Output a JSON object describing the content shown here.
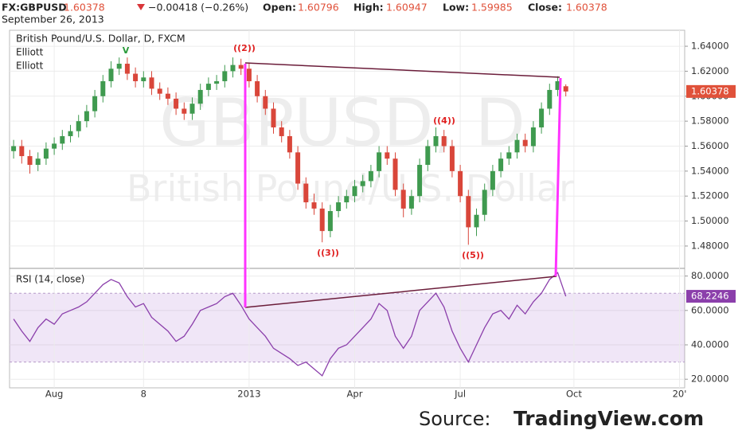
{
  "header": {
    "symbol": "FX:GBPUSD",
    "price": "1.60378",
    "change": "−0.00418 (−0.26%)",
    "open_label": "Open:",
    "open": "1.60796",
    "high_label": "High:",
    "high": "1.60947",
    "low_label": "Low:",
    "low": "1.59985",
    "close_label": "Close:",
    "close": "1.60378",
    "date": "September 26, 2013"
  },
  "source": {
    "label": "Source:",
    "site": "TradingView.com"
  },
  "chart_data": [
    {
      "type": "candlestick",
      "title": "British Pound/U.S. Dollar, D, FXCM",
      "indicators": [
        "Elliott",
        "Elliott"
      ],
      "watermark": [
        "GBPUSD, D",
        "British Pound/U.S. Dollar"
      ],
      "annotations": [
        "V",
        "((2))",
        "((3))",
        "((4))",
        "((5))"
      ],
      "open": [
        1.556,
        1.56,
        1.552,
        1.545,
        1.55,
        1.558,
        1.562,
        1.568,
        1.572,
        1.58,
        1.588,
        1.6,
        1.612,
        1.622,
        1.626,
        1.618,
        1.612,
        1.615,
        1.606,
        1.602,
        1.598,
        1.59,
        1.586,
        1.594,
        1.605,
        1.61,
        1.612,
        1.62,
        1.625,
        1.622,
        1.612,
        1.6,
        1.59,
        1.575,
        1.568,
        1.555,
        1.53,
        1.515,
        1.51,
        1.492,
        1.508,
        1.515,
        1.52,
        1.528,
        1.532,
        1.54,
        1.555,
        1.55,
        1.525,
        1.51,
        1.52,
        1.545,
        1.56,
        1.568,
        1.56,
        1.54,
        1.52,
        1.495,
        1.505,
        1.525,
        1.54,
        1.55,
        1.555,
        1.565,
        1.56,
        1.575,
        1.59,
        1.605,
        1.60796
      ],
      "high": [
        1.565,
        1.565,
        1.557,
        1.555,
        1.563,
        1.567,
        1.573,
        1.577,
        1.585,
        1.593,
        1.605,
        1.617,
        1.628,
        1.631,
        1.631,
        1.623,
        1.62,
        1.62,
        1.611,
        1.607,
        1.603,
        1.595,
        1.599,
        1.61,
        1.615,
        1.617,
        1.625,
        1.631,
        1.63,
        1.627,
        1.617,
        1.605,
        1.595,
        1.58,
        1.573,
        1.56,
        1.535,
        1.522,
        1.515,
        1.513,
        1.52,
        1.525,
        1.533,
        1.537,
        1.545,
        1.56,
        1.56,
        1.555,
        1.53,
        1.525,
        1.55,
        1.565,
        1.575,
        1.573,
        1.565,
        1.545,
        1.525,
        1.51,
        1.53,
        1.545,
        1.555,
        1.56,
        1.57,
        1.57,
        1.58,
        1.595,
        1.61,
        1.616,
        1.60947
      ],
      "low": [
        1.55,
        1.546,
        1.538,
        1.54,
        1.545,
        1.553,
        1.557,
        1.563,
        1.567,
        1.575,
        1.583,
        1.595,
        1.607,
        1.617,
        1.613,
        1.607,
        1.607,
        1.601,
        1.597,
        1.593,
        1.585,
        1.581,
        1.581,
        1.589,
        1.6,
        1.605,
        1.607,
        1.615,
        1.617,
        1.607,
        1.595,
        1.585,
        1.57,
        1.563,
        1.55,
        1.525,
        1.51,
        1.505,
        1.483,
        1.487,
        1.503,
        1.51,
        1.515,
        1.523,
        1.527,
        1.535,
        1.545,
        1.52,
        1.503,
        1.505,
        1.515,
        1.54,
        1.555,
        1.555,
        1.535,
        1.515,
        1.481,
        1.488,
        1.5,
        1.52,
        1.535,
        1.545,
        1.55,
        1.555,
        1.555,
        1.57,
        1.585,
        1.6,
        1.59985
      ],
      "close": [
        1.56,
        1.552,
        1.545,
        1.55,
        1.558,
        1.562,
        1.568,
        1.572,
        1.58,
        1.588,
        1.6,
        1.612,
        1.622,
        1.626,
        1.618,
        1.612,
        1.615,
        1.606,
        1.602,
        1.598,
        1.59,
        1.586,
        1.594,
        1.605,
        1.61,
        1.612,
        1.62,
        1.625,
        1.622,
        1.612,
        1.6,
        1.59,
        1.575,
        1.568,
        1.555,
        1.53,
        1.515,
        1.51,
        1.492,
        1.508,
        1.515,
        1.52,
        1.528,
        1.532,
        1.54,
        1.555,
        1.55,
        1.525,
        1.51,
        1.52,
        1.545,
        1.56,
        1.568,
        1.56,
        1.54,
        1.52,
        1.495,
        1.505,
        1.525,
        1.54,
        1.55,
        1.555,
        1.565,
        1.56,
        1.575,
        1.59,
        1.605,
        1.612,
        1.60378
      ],
      "up_color": "#3f9a4f",
      "down_color": "#d9463a",
      "last_color": "#e0513a",
      "ylim": [
        1.4621,
        1.6528
      ],
      "yticks": [
        {
          "value": 1.48,
          "label": "1.48000"
        },
        {
          "value": 1.5,
          "label": "1.50000"
        },
        {
          "value": 1.52,
          "label": "1.52000"
        },
        {
          "value": 1.54,
          "label": "1.54000"
        },
        {
          "value": 1.56,
          "label": "1.56000"
        },
        {
          "value": 1.58,
          "label": "1.58000"
        },
        {
          "value": 1.6,
          "label": "1.60000"
        },
        {
          "value": 1.62,
          "label": "1.62000"
        },
        {
          "value": 1.64,
          "label": "1.64000"
        }
      ],
      "grid": true
    },
    {
      "type": "line",
      "title": "RSI (14, close)",
      "categories": [
        null,
        null,
        null,
        null,
        null,
        "Aug",
        null,
        null,
        null,
        null,
        null,
        null,
        null,
        null,
        null,
        null,
        "8",
        null,
        null,
        null,
        null,
        null,
        null,
        null,
        null,
        null,
        null,
        null,
        null,
        "2013",
        null,
        null,
        null,
        null,
        null,
        null,
        null,
        null,
        null,
        null,
        null,
        null,
        "Apr",
        null,
        null,
        null,
        null,
        null,
        null,
        null,
        null,
        null,
        null,
        null,
        null,
        "Jul",
        null,
        null,
        null,
        null,
        null,
        null,
        null,
        null,
        null,
        null,
        null,
        null,
        null,
        "Oct",
        null,
        null,
        null,
        null,
        null,
        null,
        null,
        null,
        null,
        null,
        null,
        null,
        "20'"
      ],
      "values": [
        55,
        48,
        42,
        50,
        55,
        52,
        58,
        60,
        62,
        65,
        70,
        75,
        78,
        76,
        68,
        62,
        64,
        56,
        52,
        48,
        42,
        45,
        52,
        60,
        62,
        64,
        68,
        70,
        63,
        55,
        50,
        45,
        38,
        35,
        32,
        28,
        30,
        26,
        22,
        32,
        38,
        40,
        45,
        50,
        55,
        64,
        60,
        45,
        38,
        45,
        60,
        65,
        70,
        62,
        48,
        38,
        30,
        40,
        50,
        58,
        60,
        55,
        63,
        58,
        65,
        70,
        78,
        82,
        68.2246,
        null,
        null,
        null,
        null,
        null,
        null,
        null,
        null,
        null,
        null,
        null,
        null,
        null,
        null
      ],
      "color": "#8b3fab",
      "bands": [
        30,
        70
      ],
      "ylim": [
        15,
        84
      ],
      "yticks": [
        {
          "value": 20,
          "label": "20.0000"
        },
        {
          "value": 40,
          "label": "40.0000"
        },
        {
          "value": 60,
          "label": "60.0000"
        },
        {
          "value": 80,
          "label": "80.0000"
        }
      ],
      "grid": true
    }
  ]
}
